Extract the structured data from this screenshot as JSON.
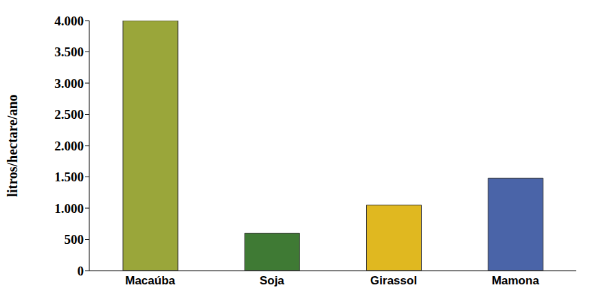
{
  "chart_data": {
    "type": "bar",
    "y_label": "litros/hectare/ano",
    "categories": [
      "Macaúba",
      "Soja",
      "Girassol",
      "Mamona"
    ],
    "values": [
      4000,
      600,
      1050,
      1480
    ],
    "colors": [
      "#9aa63a",
      "#3f7a34",
      "#e0b820",
      "#4a64a8"
    ],
    "ylim": [
      0,
      4000
    ],
    "yticks": [
      0,
      500,
      {
        "value": 1000,
        "label": "1.000"
      },
      {
        "value": 1500,
        "label": "1.500"
      },
      {
        "value": 2000,
        "label": "2.000"
      },
      {
        "value": 2500,
        "label": "2.500"
      },
      {
        "value": 3000,
        "label": "3.000"
      },
      {
        "value": 3500,
        "label": "3.500"
      },
      {
        "value": 4000,
        "label": "4.000"
      }
    ],
    "grid": false
  }
}
